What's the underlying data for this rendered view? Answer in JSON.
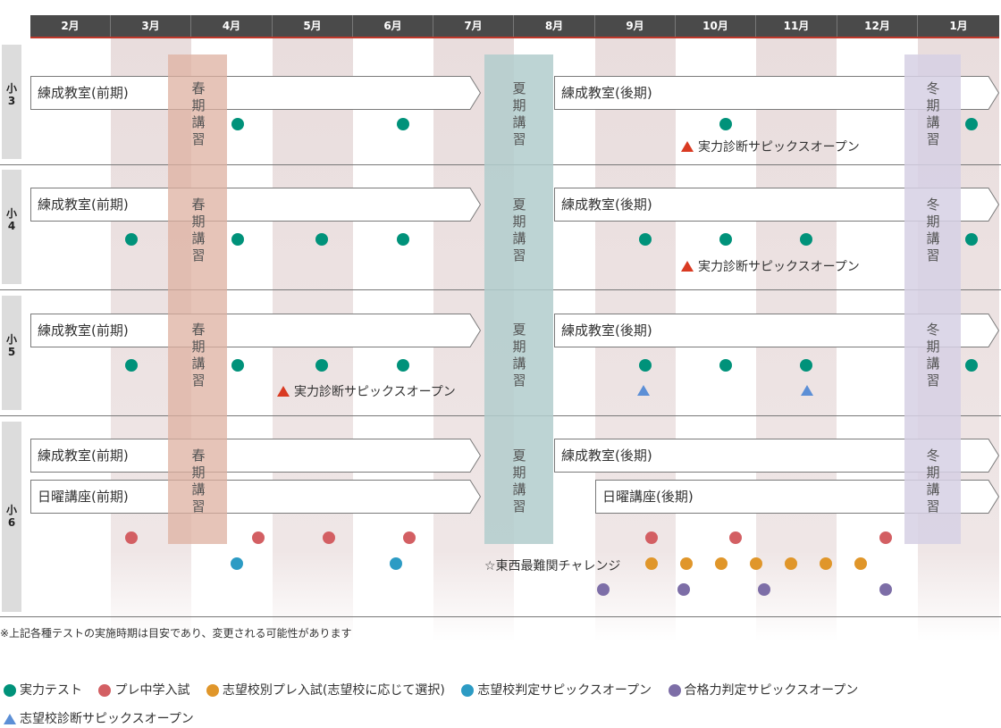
{
  "months": [
    "2月",
    "3月",
    "4月",
    "5月",
    "6月",
    "7月",
    "8月",
    "9月",
    "10月",
    "11月",
    "12月",
    "1月"
  ],
  "grades": [
    {
      "label_top": "小",
      "label_num": "3"
    },
    {
      "label_top": "小",
      "label_num": "4"
    },
    {
      "label_top": "小",
      "label_num": "5"
    },
    {
      "label_top": "小",
      "label_num": "6"
    }
  ],
  "courses": {
    "renseki_first": "練成教室(前期)",
    "renseki_second": "練成教室(後期)",
    "nichiyo_first": "日曜講座(前期)",
    "nichiyo_second": "日曜講座(後期)",
    "spring": [
      "春",
      "期",
      "講",
      "習"
    ],
    "summer": [
      "夏",
      "期",
      "講",
      "習"
    ],
    "winter": [
      "冬",
      "期",
      "講",
      "習"
    ]
  },
  "notes": {
    "open_test": "実力診断サピックスオープン",
    "tozai": "☆東西最難関チャレンジ"
  },
  "footnote": "※上記各種テストの実施時期は目安であり、変更される可能性があります",
  "legend": [
    {
      "label": "実力テスト",
      "color": "#00927a",
      "shape": "circle"
    },
    {
      "label": "プレ中学入試",
      "color": "#d35f63",
      "shape": "circle"
    },
    {
      "label": "志望校別プレ入試(志望校に応じて選択)",
      "color": "#e0962a",
      "shape": "circle"
    },
    {
      "label": "志望校判定サピックスオープン",
      "color": "#2c9bc4",
      "shape": "circle"
    },
    {
      "label": "合格力判定サピックスオープン",
      "color": "#7d6ea7",
      "shape": "circle"
    },
    {
      "label": "志望校診断サピックスオープン",
      "color": "#5c8fd6",
      "shape": "triangle"
    }
  ],
  "colors": {
    "jitsuryoku": "#00927a",
    "pre": "#d35f63",
    "shibobetsu": "#e0962a",
    "hantei": "#2c9bc4",
    "goukaku": "#7d6ea7",
    "shindan": "#5c8fd6",
    "open_marker": "#d93a22"
  }
}
